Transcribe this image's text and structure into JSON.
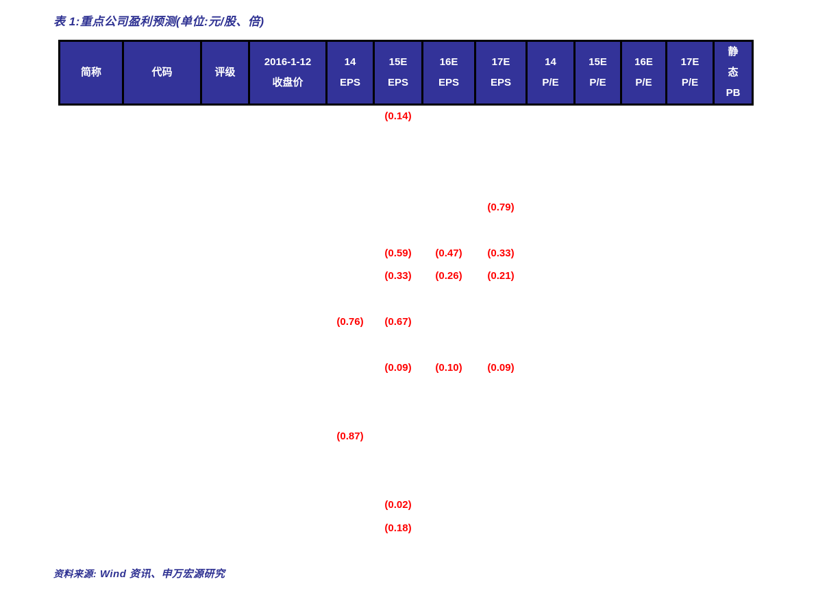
{
  "page": {
    "title": "表 1:重点公司盈利预测(单位:元/股、倍)"
  },
  "footer": {
    "prefix": "资料来源:",
    "text": "Wind 资讯、申万宏源研究"
  },
  "colors": {
    "header_bg": "#333399",
    "header_text": "#ffffff",
    "accent_blue": "#2e3192",
    "value_red": "#ff0000",
    "border_black": "#000000",
    "page_bg": "#ffffff"
  },
  "table": {
    "columns": [
      {
        "key": "name",
        "label": "简称"
      },
      {
        "key": "code",
        "label": "代码"
      },
      {
        "key": "rating",
        "label": "评级"
      },
      {
        "key": "close",
        "label": "2016-1-12\n收盘价"
      },
      {
        "key": "eps14",
        "label": "14\nEPS"
      },
      {
        "key": "eps15e",
        "label": "15E\nEPS"
      },
      {
        "key": "eps16e",
        "label": "16E\nEPS"
      },
      {
        "key": "eps17e",
        "label": "17E\nEPS"
      },
      {
        "key": "pe14",
        "label": "14\nP/E"
      },
      {
        "key": "pe15e",
        "label": "15E\nP/E"
      },
      {
        "key": "pe16e",
        "label": "16E\nP/E"
      },
      {
        "key": "pe17e",
        "label": "17E\nP/E"
      },
      {
        "key": "pb",
        "label": "静\n态\nPB"
      }
    ],
    "rows": [
      [
        "",
        "",
        "",
        "",
        "",
        "(0.14)",
        "",
        "",
        "",
        "",
        "",
        "",
        ""
      ],
      [
        "",
        "",
        "",
        "",
        "",
        "",
        "",
        "",
        "",
        "",
        "",
        "",
        ""
      ],
      [
        "",
        "",
        "",
        "",
        "",
        "",
        "",
        "",
        "",
        "",
        "",
        "",
        ""
      ],
      [
        "",
        "",
        "",
        "",
        "",
        "",
        "",
        "",
        "",
        "",
        "",
        "",
        ""
      ],
      [
        "",
        "",
        "",
        "",
        "",
        "",
        "",
        "(0.79)",
        "",
        "",
        "",
        "",
        ""
      ],
      [
        "",
        "",
        "",
        "",
        "",
        "",
        "",
        "",
        "",
        "",
        "",
        "",
        ""
      ],
      [
        "",
        "",
        "",
        "",
        "",
        "(0.59)",
        "(0.47)",
        "(0.33)",
        "",
        "",
        "",
        "",
        ""
      ],
      [
        "",
        "",
        "",
        "",
        "",
        "(0.33)",
        "(0.26)",
        "(0.21)",
        "",
        "",
        "",
        "",
        ""
      ],
      [
        "",
        "",
        "",
        "",
        "",
        "",
        "",
        "",
        "",
        "",
        "",
        "",
        ""
      ],
      [
        "",
        "",
        "",
        "",
        "(0.76)",
        "(0.67)",
        "",
        "",
        "",
        "",
        "",
        "",
        ""
      ],
      [
        "",
        "",
        "",
        "",
        "",
        "",
        "",
        "",
        "",
        "",
        "",
        "",
        ""
      ],
      [
        "",
        "",
        "",
        "",
        "",
        "(0.09)",
        "(0.10)",
        "(0.09)",
        "",
        "",
        "",
        "",
        ""
      ],
      [
        "",
        "",
        "",
        "",
        "",
        "",
        "",
        "",
        "",
        "",
        "",
        "",
        ""
      ],
      [
        "",
        "",
        "",
        "",
        "",
        "",
        "",
        "",
        "",
        "",
        "",
        "",
        ""
      ],
      [
        "",
        "",
        "",
        "",
        "(0.87)",
        "",
        "",
        "",
        "",
        "",
        "",
        "",
        ""
      ],
      [
        "",
        "",
        "",
        "",
        "",
        "",
        "",
        "",
        "",
        "",
        "",
        "",
        ""
      ],
      [
        "",
        "",
        "",
        "",
        "",
        "",
        "",
        "",
        "",
        "",
        "",
        "",
        ""
      ],
      [
        "",
        "",
        "",
        "",
        "",
        "(0.02)",
        "",
        "",
        "",
        "",
        "",
        "",
        ""
      ],
      [
        "",
        "",
        "",
        "",
        "",
        "(0.18)",
        "",
        "",
        "",
        "",
        "",
        "",
        ""
      ]
    ]
  }
}
